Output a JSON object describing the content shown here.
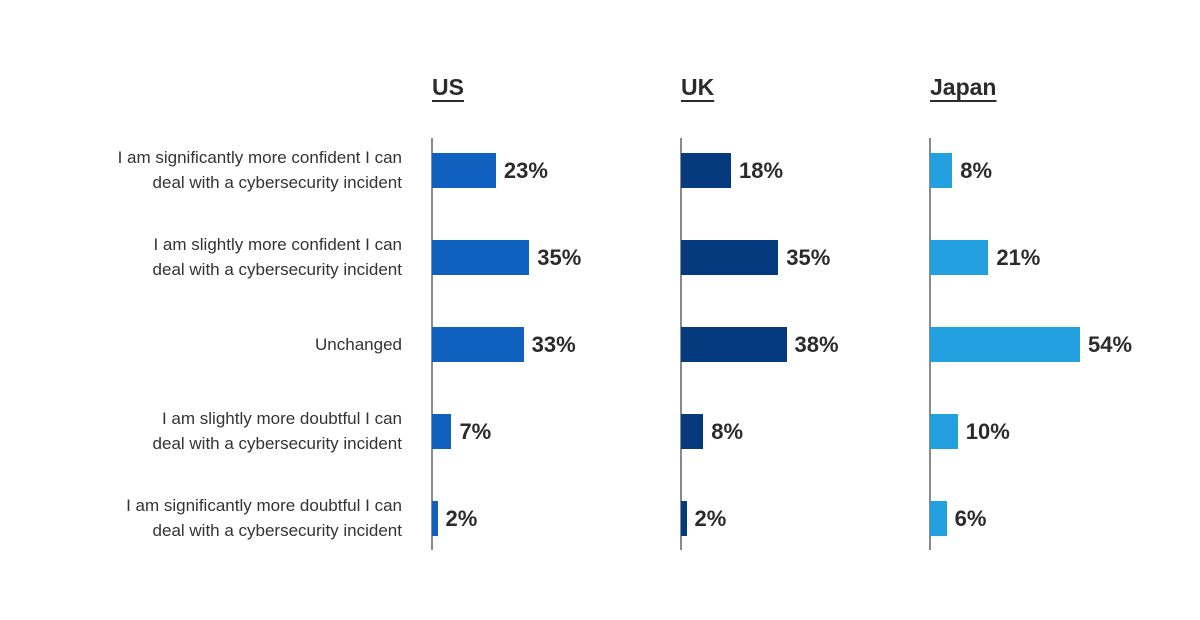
{
  "chart_data": {
    "type": "bar",
    "orientation": "horizontal",
    "categories": [
      "I am significantly more confident I can\ndeal with a cybersecurity incident",
      "I am slightly more confident I can\ndeal with a cybersecurity incident",
      "Unchanged",
      "I am slightly more doubtful I can\ndeal with a cybersecurity incident",
      "I am significantly more doubtful I can\ndeal with a cybersecurity incident"
    ],
    "value_suffix": "%",
    "xlim": [
      0,
      60
    ],
    "grid": false,
    "legend": "none",
    "panels": [
      {
        "name": "US",
        "color": "#1060c0",
        "values": [
          23,
          35,
          33,
          7,
          2
        ]
      },
      {
        "name": "UK",
        "color": "#063a7e",
        "values": [
          18,
          35,
          38,
          8,
          2
        ]
      },
      {
        "name": "Japan",
        "color": "#22a0e0",
        "values": [
          8,
          21,
          54,
          10,
          6
        ]
      }
    ]
  }
}
